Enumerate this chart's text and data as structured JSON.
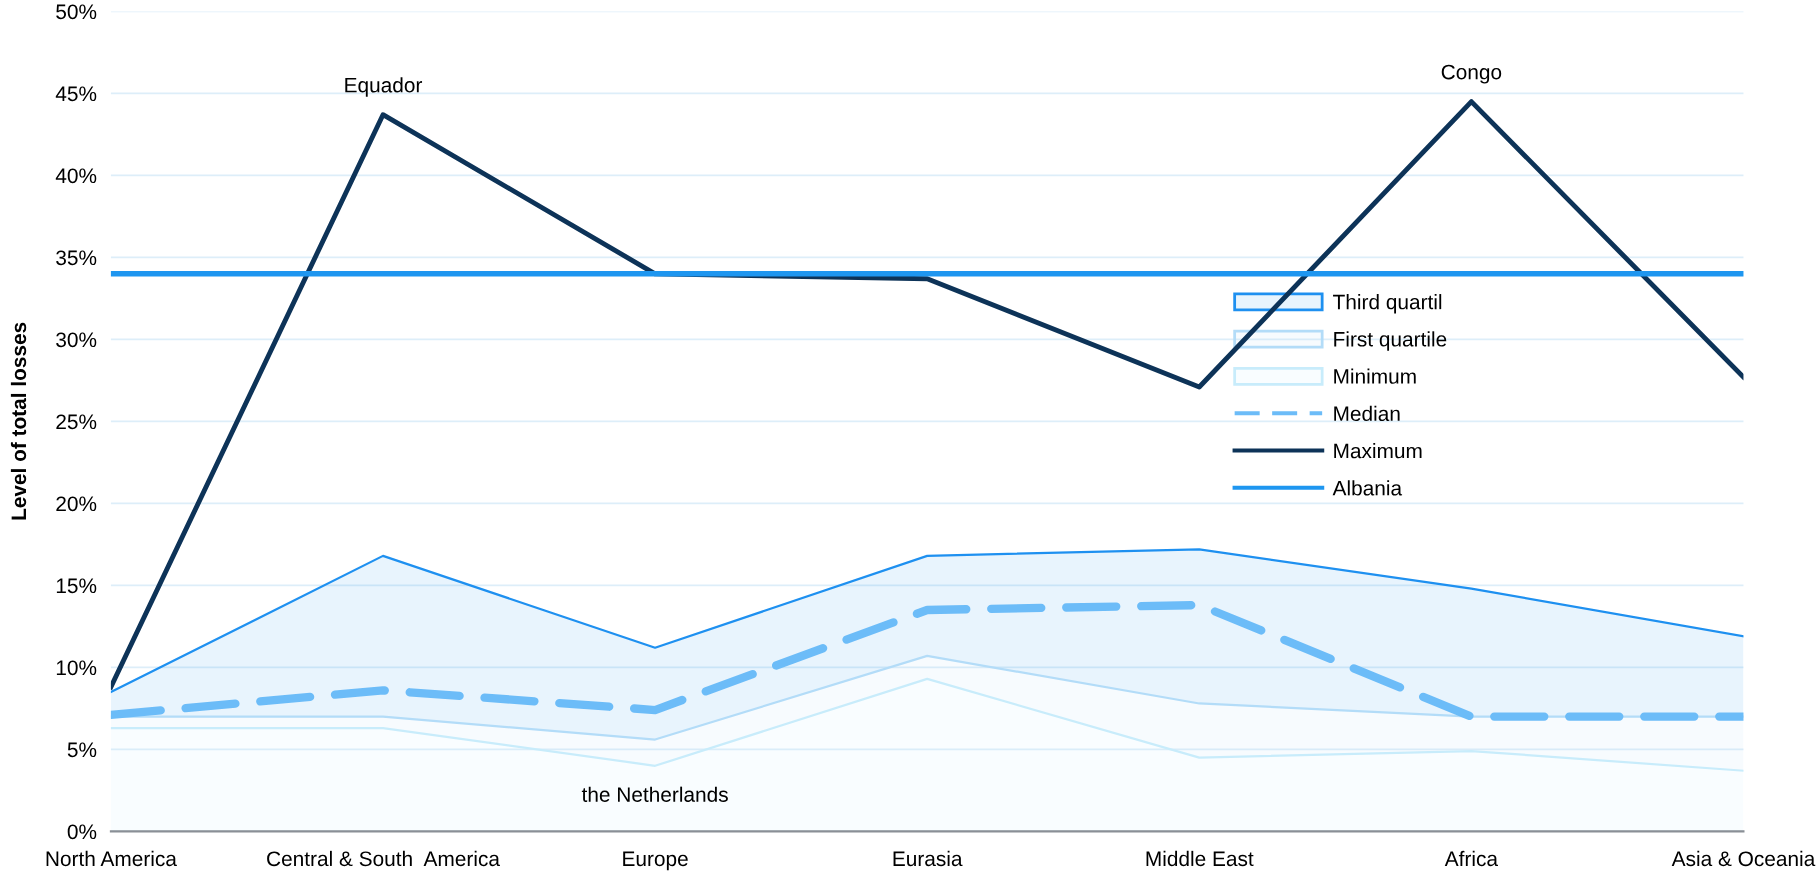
{
  "chart_data": {
    "type": "area",
    "stacked": true,
    "ylabel": "Level of total losses",
    "categories": [
      "North America",
      "Central & South  America",
      "Europe",
      "Eurasia",
      "Middle East",
      "Africa",
      "Asia & Oceania"
    ],
    "series": [
      {
        "name": "Minimum",
        "color": "#c8ecfb",
        "values": [
          6.3,
          6.3,
          4.0,
          9.3,
          4.5,
          4.9,
          3.7
        ]
      },
      {
        "name": "First quartile",
        "color": "#b3dcf8",
        "values": [
          0.7,
          0.7,
          1.6,
          1.4,
          3.3,
          2.1,
          3.3
        ]
      },
      {
        "name": "Third quartil",
        "color": "#1e90f0",
        "values": [
          1.5,
          9.8,
          5.6,
          6.1,
          9.4,
          7.8,
          4.9
        ]
      },
      {
        "name": "Median",
        "type": "line",
        "line_style": "dashed",
        "color": "#6cbcf8",
        "values": [
          7.1,
          8.6,
          7.4,
          13.5,
          13.8,
          7.0,
          7.0
        ]
      },
      {
        "name": "Maximum",
        "type": "line",
        "line_style": "solid",
        "color": "#0d3358",
        "values": [
          8.8,
          43.7,
          34.0,
          33.7,
          27.1,
          44.5,
          27.7
        ]
      },
      {
        "name": "Albania",
        "type": "line",
        "line_style": "solid",
        "color": "#1e96f0",
        "values": [
          34.0,
          34.0,
          34.0,
          34.0,
          34.0,
          34.0,
          34.0
        ]
      }
    ],
    "ylim": [
      0,
      50
    ],
    "yticks": [
      {
        "value": 0,
        "label": "0%"
      },
      {
        "value": 5,
        "label": "5%"
      },
      {
        "value": 10,
        "label": "10%"
      },
      {
        "value": 15,
        "label": "15%"
      },
      {
        "value": 20,
        "label": "20%"
      },
      {
        "value": 25,
        "label": "25%"
      },
      {
        "value": 30,
        "label": "30%"
      },
      {
        "value": 35,
        "label": "35%"
      },
      {
        "value": 40,
        "label": "40%"
      },
      {
        "value": 45,
        "label": "45%"
      },
      {
        "value": 50,
        "label": "50%"
      }
    ],
    "grid": "y",
    "legend": "right",
    "annotations": [
      {
        "text": "Equador",
        "x": "Central & South  America",
        "y": 43.7
      },
      {
        "text": "Congo",
        "x": "Africa",
        "y": 44.5
      },
      {
        "text": "the Netherlands",
        "x": "Europe",
        "y": 4.0
      }
    ]
  }
}
